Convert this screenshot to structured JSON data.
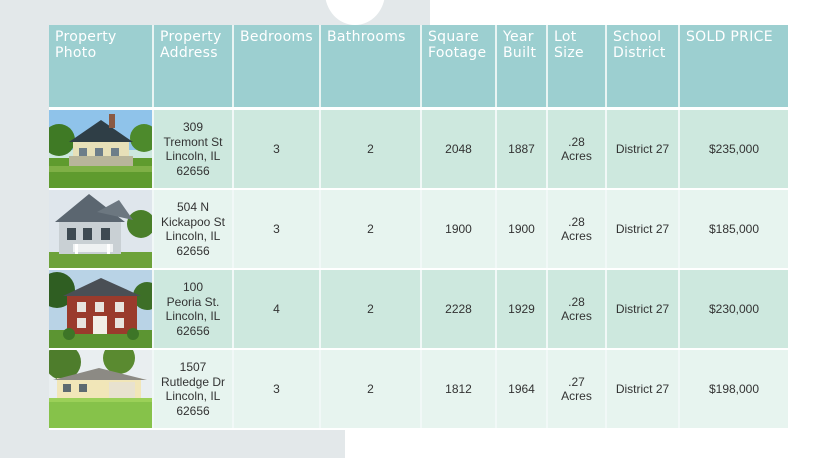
{
  "table": {
    "headers": [
      "Property Photo",
      "Property Address",
      "Bedrooms",
      "Bathrooms",
      "Square Footage",
      "Year Built",
      "Lot Size",
      "School District",
      "SOLD PRICE"
    ],
    "rows": [
      {
        "photo_icon": "house-photo-1",
        "address": [
          "309",
          "Tremont St",
          "Lincoln, IL",
          "62656"
        ],
        "bedrooms": "3",
        "bathrooms": "2",
        "sqft": "2048",
        "year": "1887",
        "lot": [
          ".28",
          "Acres"
        ],
        "district": "District 27",
        "price": "$235,000"
      },
      {
        "photo_icon": "house-photo-2",
        "address": [
          "504 N",
          "Kickapoo St",
          "Lincoln, IL",
          "62656"
        ],
        "bedrooms": "3",
        "bathrooms": "2",
        "sqft": "1900",
        "year": "1900",
        "lot": [
          ".28",
          "Acres"
        ],
        "district": "District 27",
        "price": "$185,000"
      },
      {
        "photo_icon": "house-photo-3",
        "address": [
          "100",
          "Peoria St.",
          "Lincoln, IL",
          "62656"
        ],
        "bedrooms": "4",
        "bathrooms": "2",
        "sqft": "2228",
        "year": "1929",
        "lot": [
          ".28",
          "Acres"
        ],
        "district": "District 27",
        "price": "$230,000"
      },
      {
        "photo_icon": "house-photo-4",
        "address": [
          "1507",
          "Rutledge Dr",
          "Lincoln, IL",
          "62656"
        ],
        "bedrooms": "3",
        "bathrooms": "2",
        "sqft": "1812",
        "year": "1964",
        "lot": [
          ".27",
          "Acres"
        ],
        "district": "District 27",
        "price": "$198,000"
      }
    ]
  },
  "colors": {
    "header_bg": "#9ccfd0",
    "row_dark": "#cde8de",
    "row_light": "#e7f4ef"
  }
}
